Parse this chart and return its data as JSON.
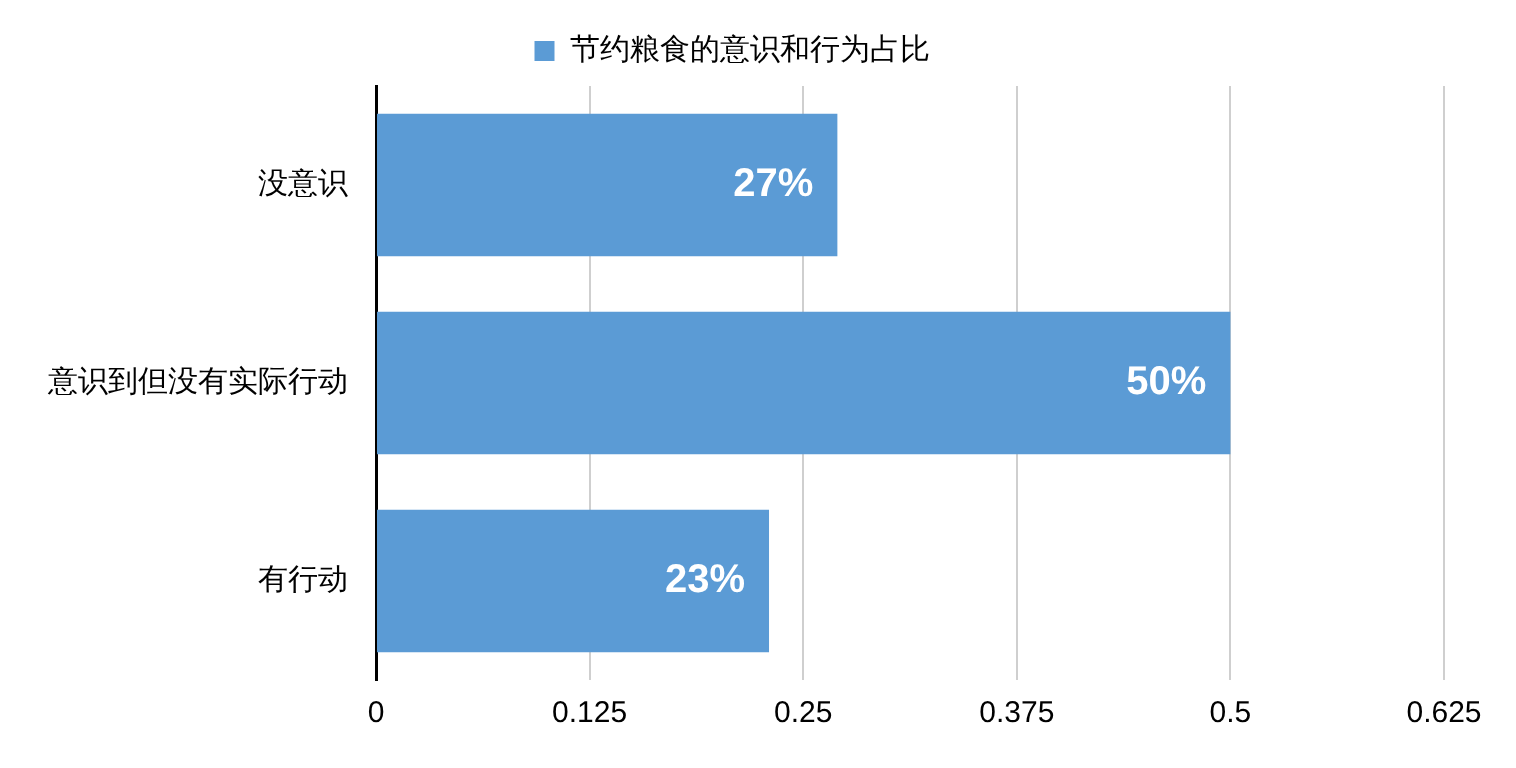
{
  "chart_data": {
    "type": "bar",
    "orientation": "horizontal",
    "categories": [
      "没意识",
      "意识到但没有实际行动",
      "有行动"
    ],
    "series": [
      {
        "name": "节约粮食的意识和行为占比",
        "color": "#5b9bd5",
        "values": [
          0.27,
          0.5,
          0.23
        ],
        "value_labels": [
          "27%",
          "50%",
          "23%"
        ]
      }
    ],
    "xlim": [
      0,
      0.625
    ],
    "xticks": [
      0,
      0.125,
      0.25,
      0.375,
      0.5,
      0.625
    ],
    "grid": "x",
    "legend": "top"
  }
}
